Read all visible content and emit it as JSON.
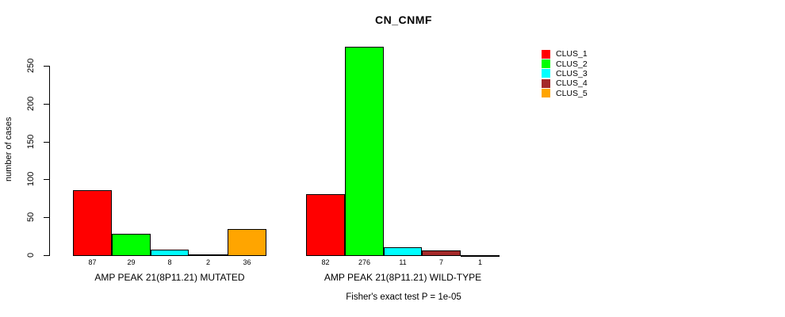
{
  "chart_data": {
    "type": "bar",
    "title": "CN_CNMF",
    "ylabel": "number of cases",
    "ylim": [
      0,
      276
    ],
    "yticks": [
      0,
      50,
      100,
      150,
      200,
      250
    ],
    "grid": false,
    "legend_position": "right",
    "series": [
      {
        "name": "CLUS_1",
        "color": "#ff0000"
      },
      {
        "name": "CLUS_2",
        "color": "#00ff00"
      },
      {
        "name": "CLUS_3",
        "color": "#00ffff"
      },
      {
        "name": "CLUS_4",
        "color": "#a52a2a"
      },
      {
        "name": "CLUS_5",
        "color": "#ffa500"
      }
    ],
    "groups": [
      {
        "label": "AMP PEAK 21(8P11.21) MUTATED",
        "values": [
          87,
          29,
          8,
          2,
          36
        ]
      },
      {
        "label": "AMP PEAK 21(8P11.21) WILD-TYPE",
        "values": [
          82,
          276,
          11,
          7,
          1
        ]
      }
    ],
    "annotation": "Fisher's exact test P = 1e-05"
  }
}
